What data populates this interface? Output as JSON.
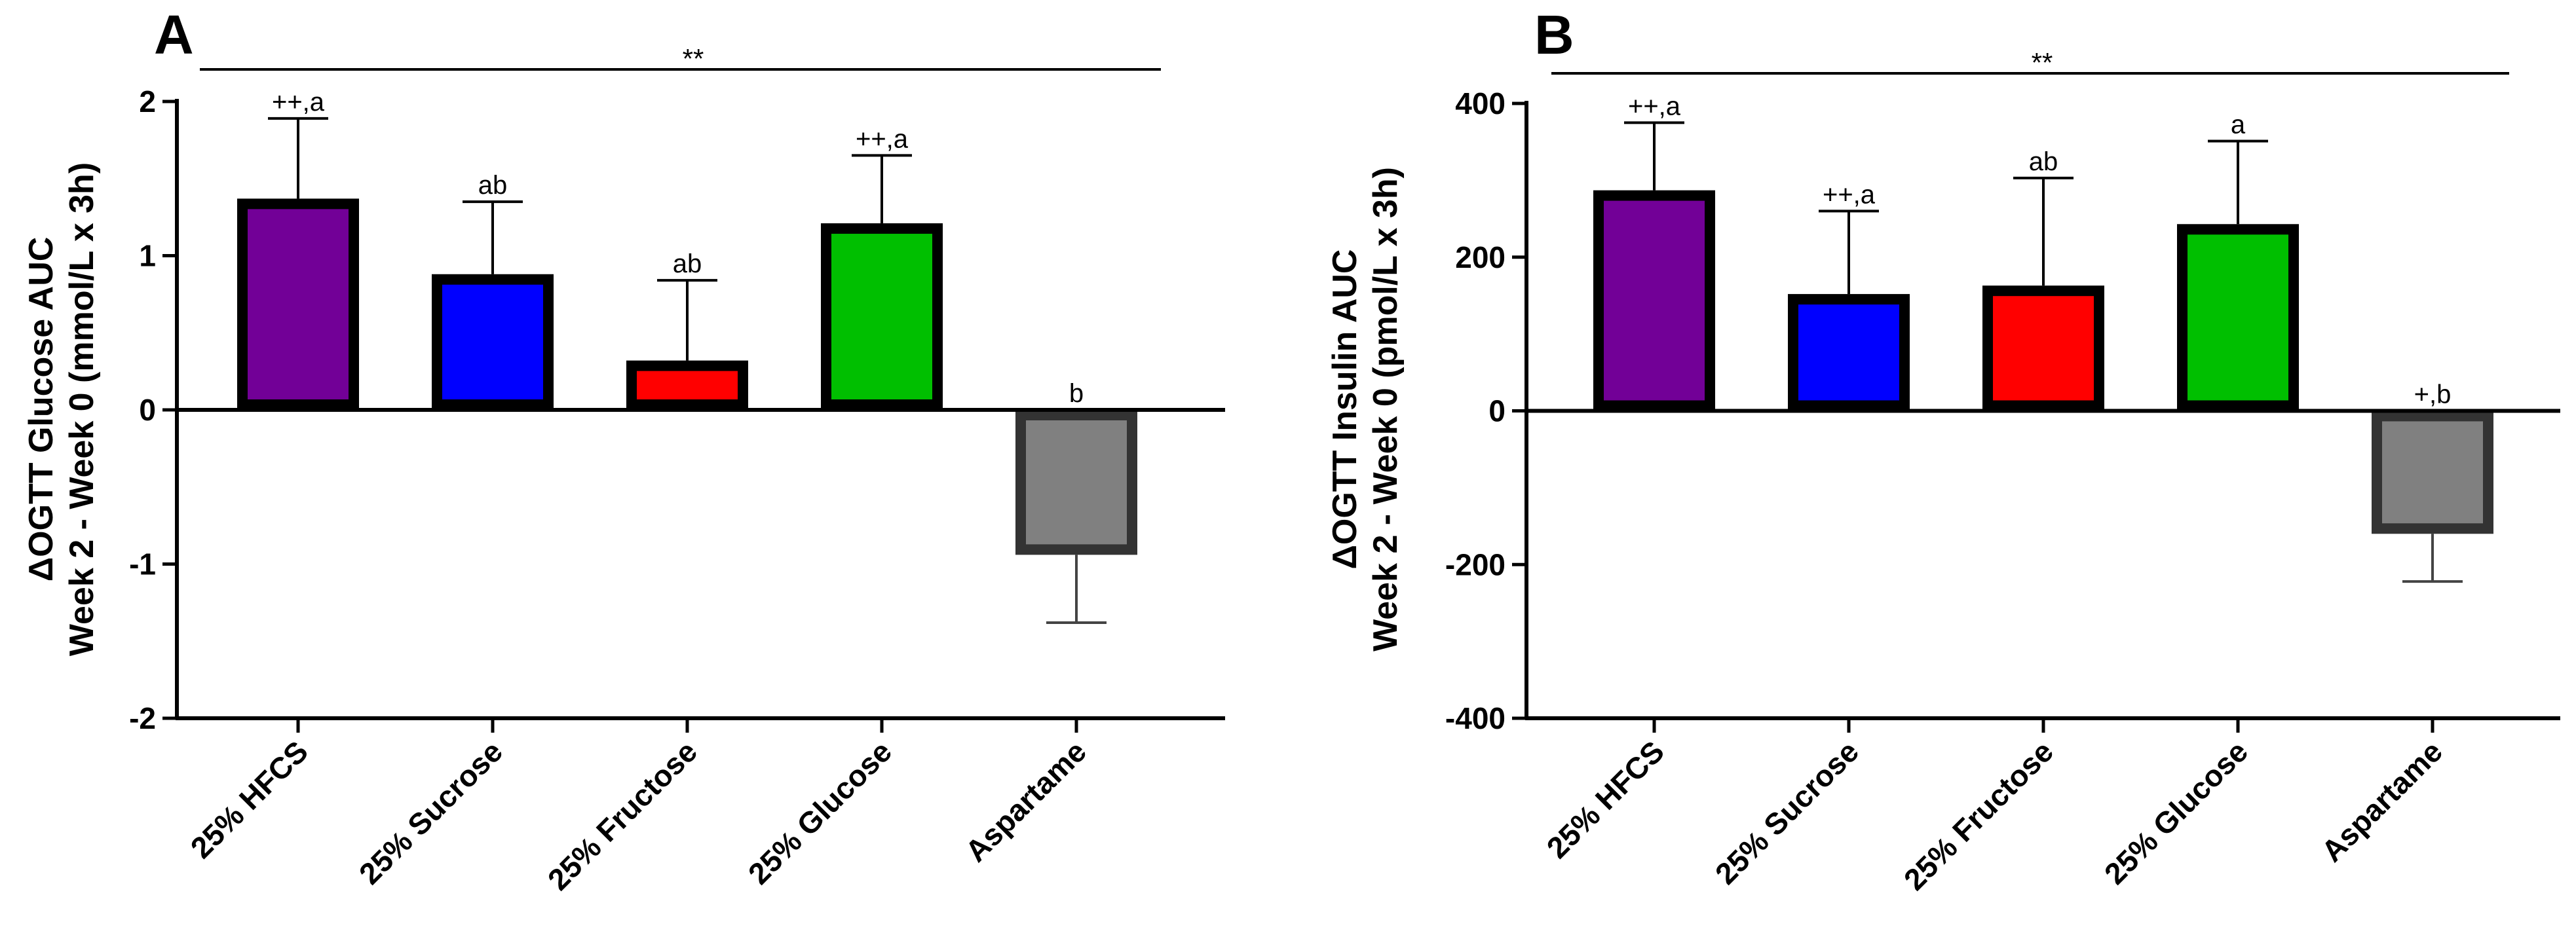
{
  "figure": {
    "panels": [
      {
        "letter": "A",
        "significance_label": "**",
        "ylabel_line1": "ΔOGTT Glucose AUC",
        "ylabel_line2": "Week 2 - Week 0 (mmol/L x 3h)"
      },
      {
        "letter": "B",
        "significance_label": "**",
        "ylabel_line1": "ΔOGTT Insulin AUC",
        "ylabel_line2": "Week 2 - Week 0 (pmol/L x 3h)"
      }
    ]
  },
  "chart_data": [
    {
      "type": "bar",
      "title": "A",
      "xlabel": "",
      "ylabel": "ΔOGTT Glucose AUC Week 2 - Week 0 (mmol/L x 3h)",
      "ylim": [
        -2,
        2
      ],
      "yticks": [
        2,
        1,
        0,
        -1,
        -2
      ],
      "ytick_labels": [
        "2",
        "1",
        "0",
        "-1",
        "-2"
      ],
      "categories": [
        "25% HFCS",
        "25% Sucrose",
        "25% Fructose",
        "25% Glucose",
        "Aspartame"
      ],
      "values": [
        1.37,
        0.88,
        0.32,
        1.21,
        -0.94
      ],
      "errors": [
        0.52,
        0.47,
        0.52,
        0.44,
        0.44
      ],
      "annotations": [
        "++,a",
        "ab",
        "ab",
        "++,a",
        "b"
      ],
      "colors": [
        "#720097",
        "#0000ff",
        "#ff0000",
        "#00bf00",
        "#808080"
      ],
      "significance_bracket": "**"
    },
    {
      "type": "bar",
      "title": "B",
      "xlabel": "",
      "ylabel": "ΔOGTT Insulin AUC Week 2 - Week 0 (pmol/L x 3h)",
      "ylim": [
        -400,
        400
      ],
      "yticks": [
        400,
        200,
        0,
        -200,
        -400
      ],
      "ytick_labels": [
        "400",
        "200",
        "0",
        "-200",
        "-400"
      ],
      "categories": [
        "25% HFCS",
        "25% Sucrose",
        "25% Fructose",
        "25% Glucose",
        "Aspartame"
      ],
      "values": [
        287,
        152,
        163,
        243,
        -160
      ],
      "errors": [
        88,
        108,
        140,
        108,
        62
      ],
      "annotations": [
        "++,a",
        "++,a",
        "ab",
        "a",
        "+,b"
      ],
      "colors": [
        "#720097",
        "#0000ff",
        "#ff0000",
        "#00bf00",
        "#808080"
      ],
      "significance_bracket": "**"
    }
  ]
}
